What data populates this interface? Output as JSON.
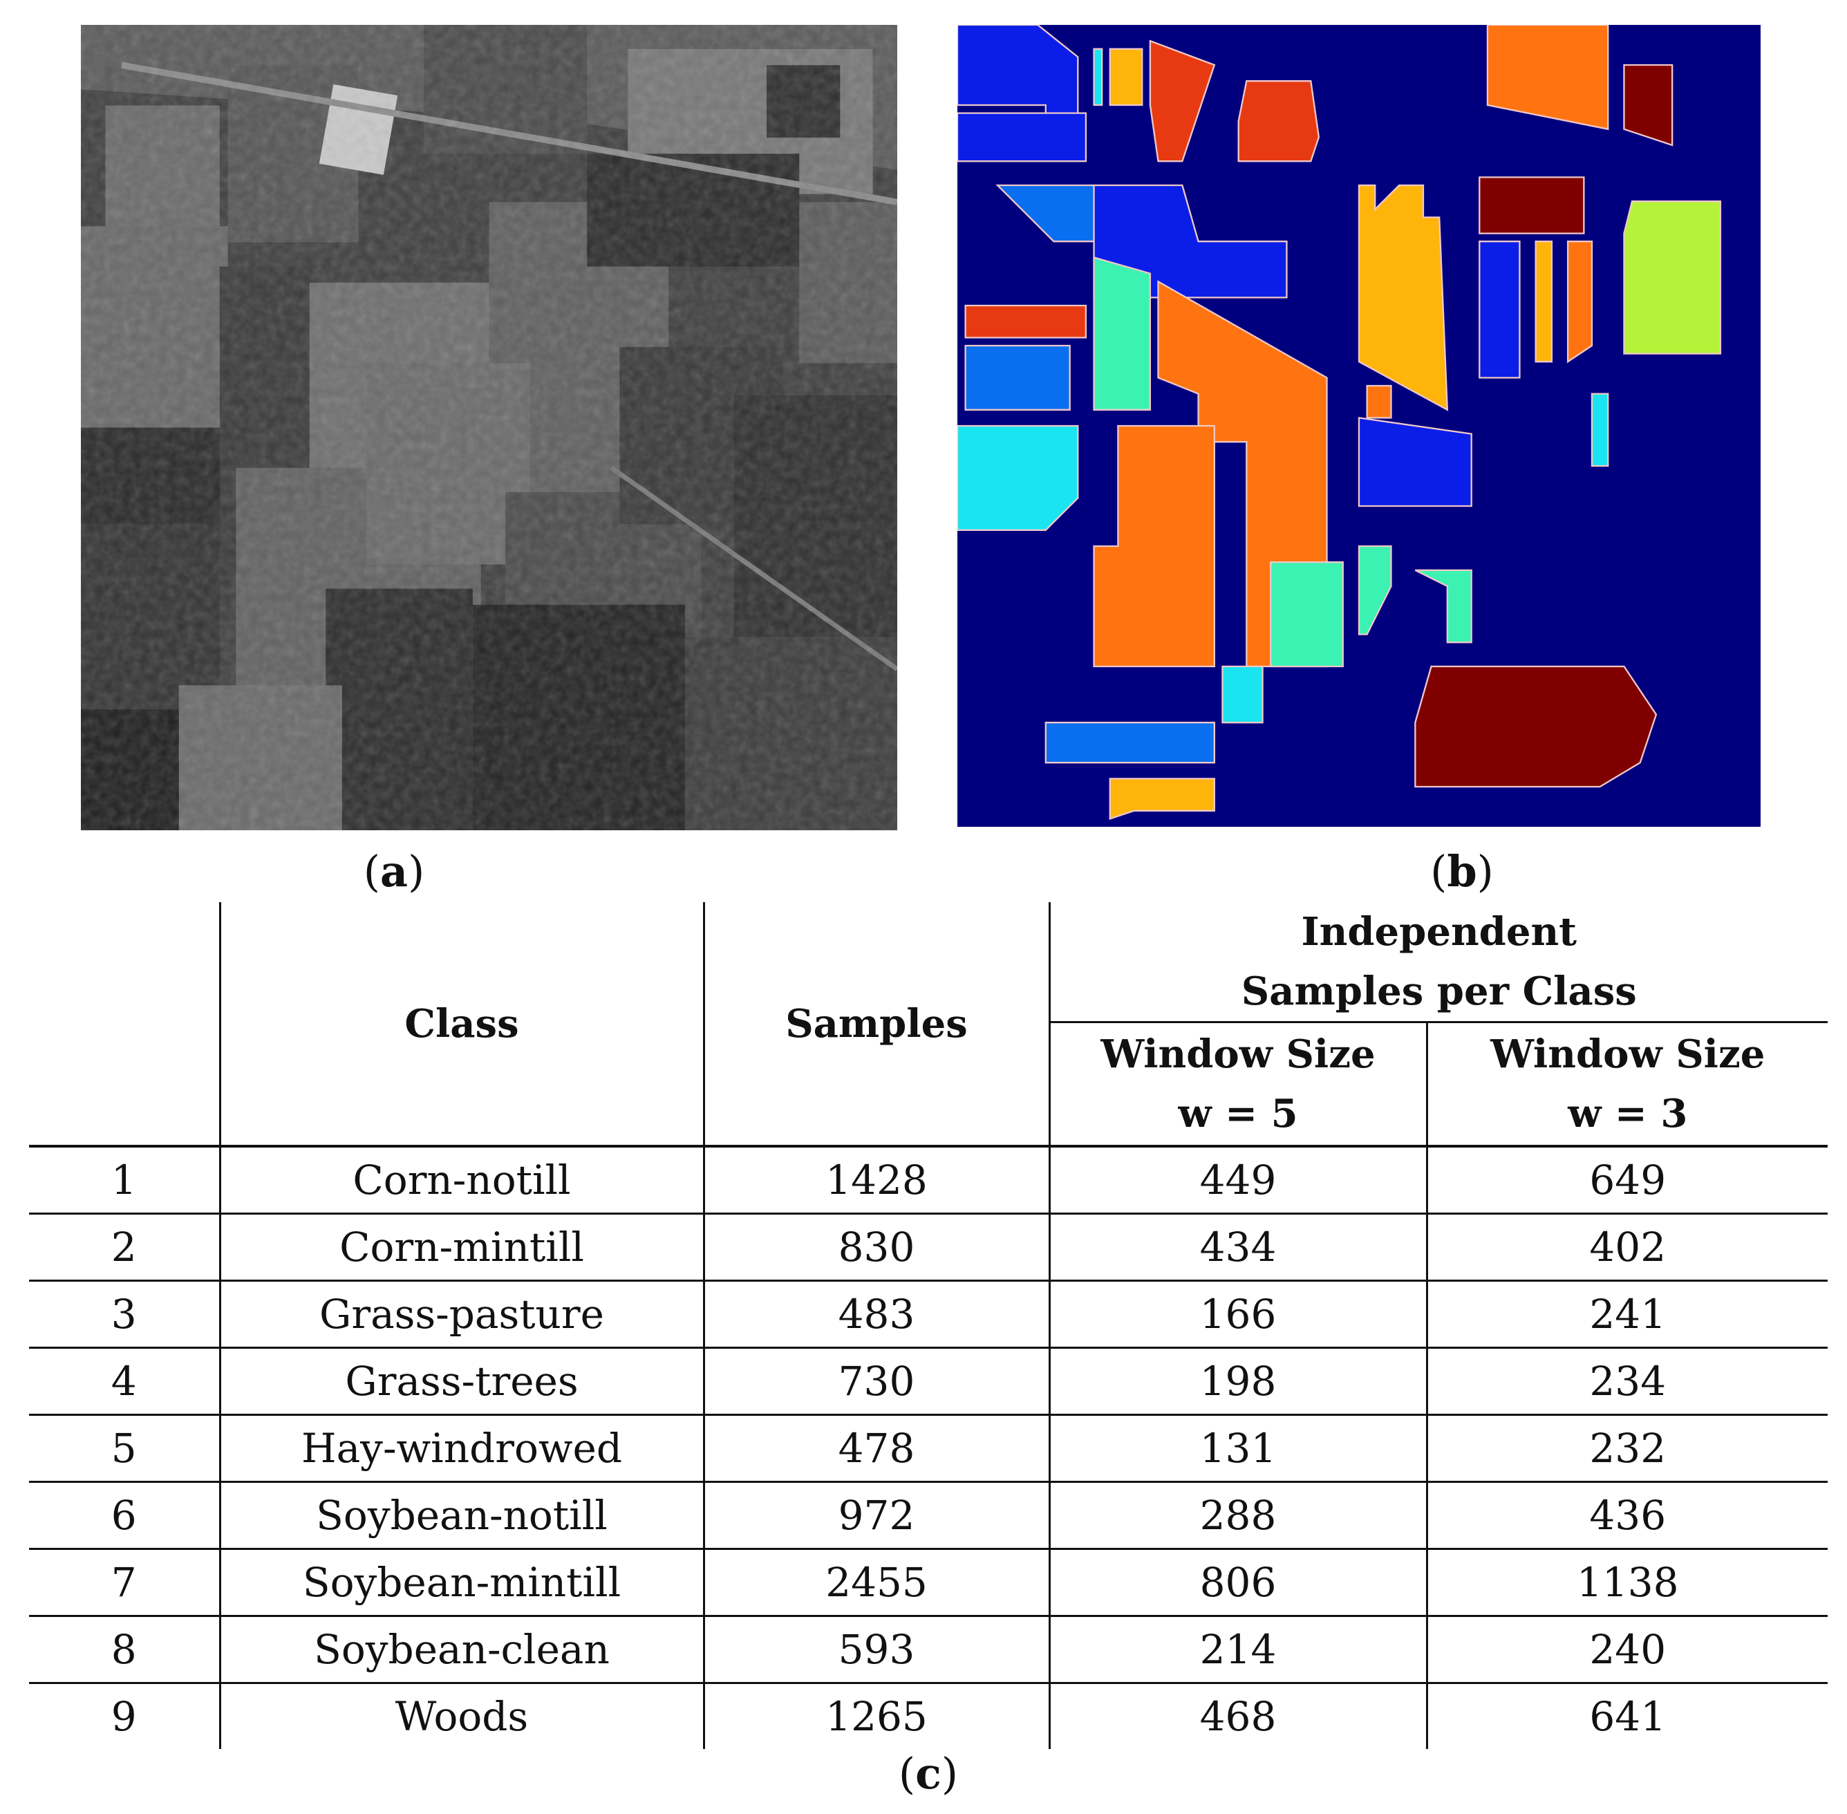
{
  "figure": {
    "panels": [
      {
        "id": "a",
        "label_open": "(",
        "label_letter": "a",
        "label_close": ")",
        "content": "grayscale-satellite-image"
      },
      {
        "id": "b",
        "label_open": "(",
        "label_letter": "b",
        "label_close": ")",
        "content": "ground-truth-class-map"
      },
      {
        "id": "c",
        "label_open": "(",
        "label_letter": "c",
        "label_close": ")",
        "content": "class-samples-table"
      }
    ],
    "colors": {
      "map_background": "#00007e",
      "red": "#e83a12",
      "orange": "#ff7410",
      "amber": "#ffb40a",
      "maroon": "#800000",
      "blue": "#0a1ee8",
      "azure": "#0a6ef0",
      "cyan": "#1ae4ef",
      "aquamarine": "#3cf2b2",
      "lime": "#b4f33a"
    }
  },
  "table": {
    "headers": {
      "index": "",
      "class": "Class",
      "samples": "Samples",
      "group": "Independent Samples per Class",
      "group_line1": "Independent",
      "group_line2": "Samples per Class",
      "w5_line1": "Window Size",
      "w5_line2": "w = 5",
      "w3_line1": "Window Size",
      "w3_line2": "w = 3"
    },
    "rows": [
      {
        "index": "1",
        "class": "Corn-notill",
        "samples": "1428",
        "w5": "449",
        "w3": "649"
      },
      {
        "index": "2",
        "class": "Corn-mintill",
        "samples": "830",
        "w5": "434",
        "w3": "402"
      },
      {
        "index": "3",
        "class": "Grass-pasture",
        "samples": "483",
        "w5": "166",
        "w3": "241"
      },
      {
        "index": "4",
        "class": "Grass-trees",
        "samples": "730",
        "w5": "198",
        "w3": "234"
      },
      {
        "index": "5",
        "class": "Hay-windrowed",
        "samples": "478",
        "w5": "131",
        "w3": "232"
      },
      {
        "index": "6",
        "class": "Soybean-notill",
        "samples": "972",
        "w5": "288",
        "w3": "436"
      },
      {
        "index": "7",
        "class": "Soybean-mintill",
        "samples": "2455",
        "w5": "806",
        "w3": "1138"
      },
      {
        "index": "8",
        "class": "Soybean-clean",
        "samples": "593",
        "w5": "214",
        "w3": "240"
      },
      {
        "index": "9",
        "class": "Woods",
        "samples": "1265",
        "w5": "468",
        "w3": "641"
      }
    ]
  }
}
